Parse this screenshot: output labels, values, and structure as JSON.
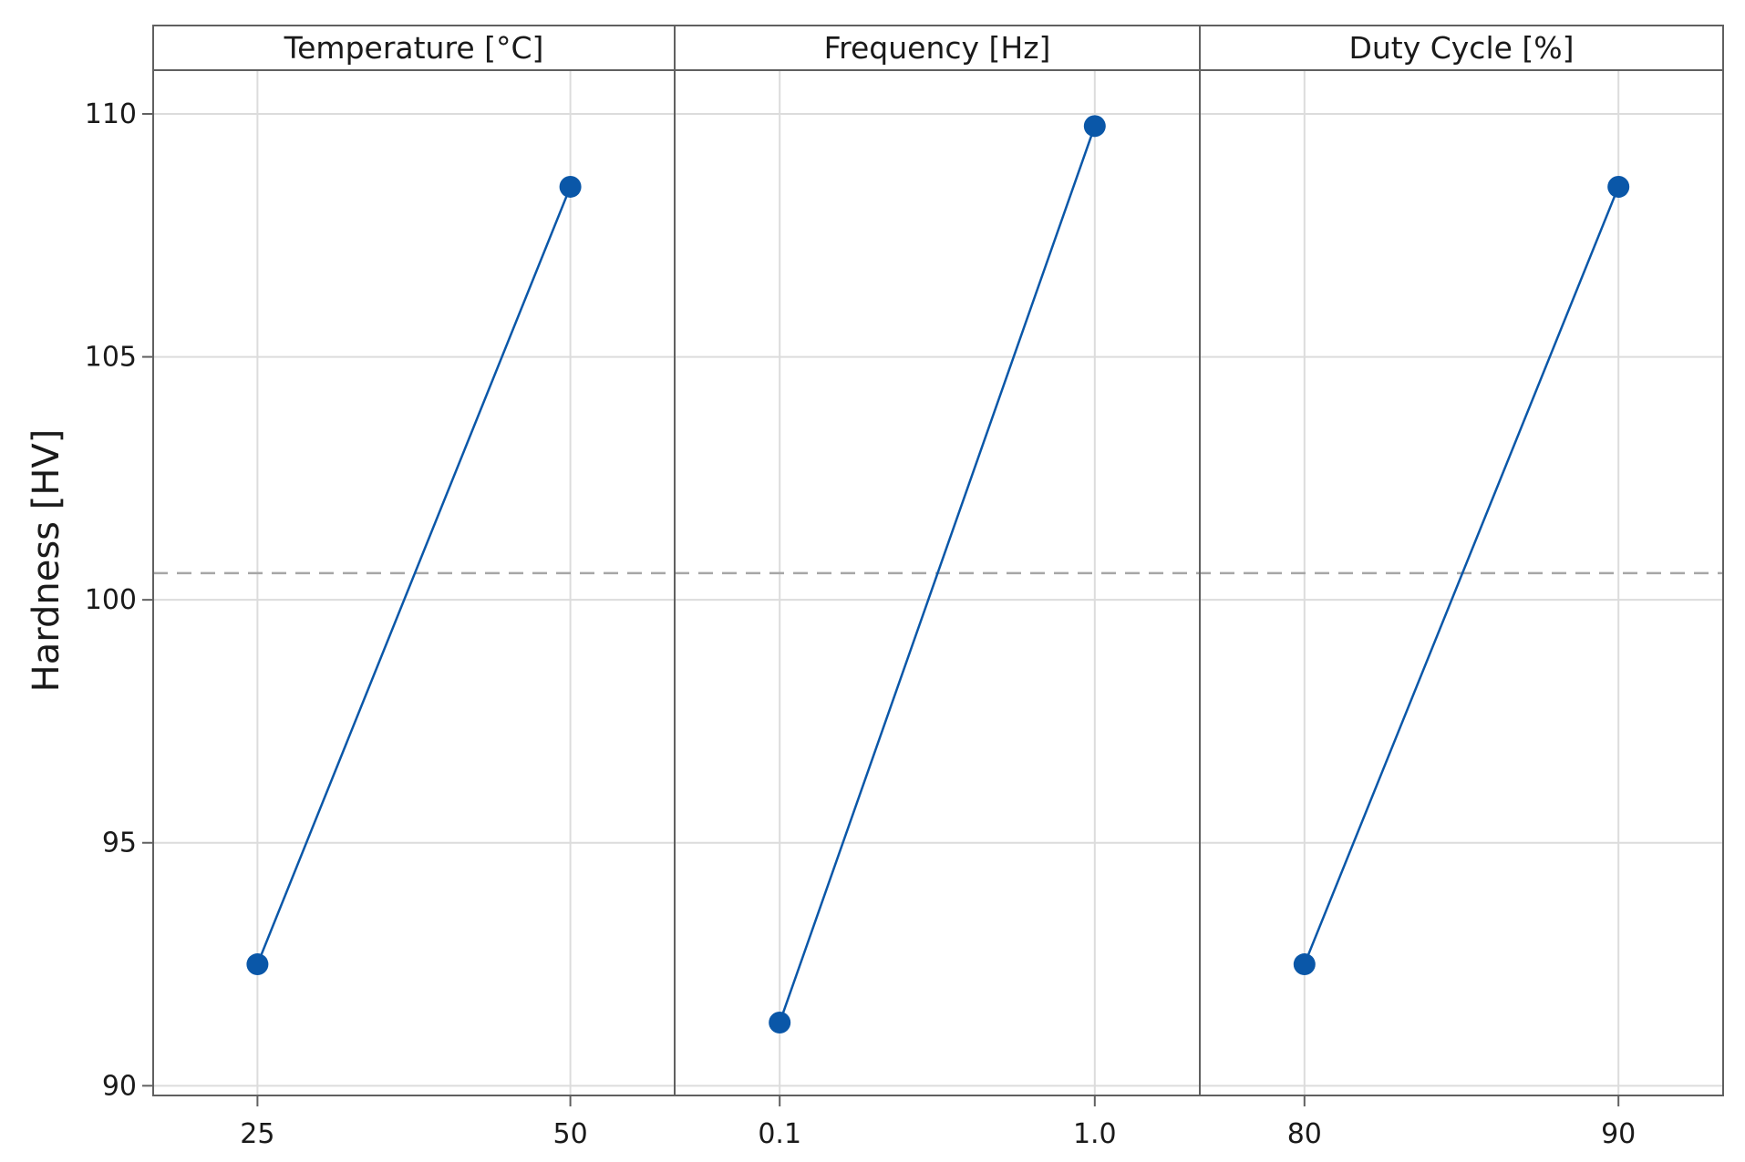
{
  "chart_data": {
    "type": "line",
    "ylabel": "Hardness [HV]",
    "ylim": [
      89.8,
      110.9
    ],
    "y_ticks": [
      "90",
      "95",
      "100",
      "105",
      "110"
    ],
    "grid": true,
    "reference_line": {
      "style": "dashed",
      "value": 100.55,
      "color": "#a6a6a6"
    },
    "colors": {
      "series": "#0a57a8",
      "frame": "#606060",
      "grid": "#dcdcdc"
    },
    "panels": [
      {
        "title": "Temperature [°C]",
        "categories": [
          "25",
          "50"
        ],
        "values": [
          92.5,
          108.5
        ]
      },
      {
        "title": "Frequency [Hz]",
        "categories": [
          "0.1",
          "1.0"
        ],
        "values": [
          91.3,
          109.75
        ]
      },
      {
        "title": "Duty Cycle [%]",
        "categories": [
          "80",
          "90"
        ],
        "values": [
          92.5,
          108.5
        ]
      }
    ]
  }
}
